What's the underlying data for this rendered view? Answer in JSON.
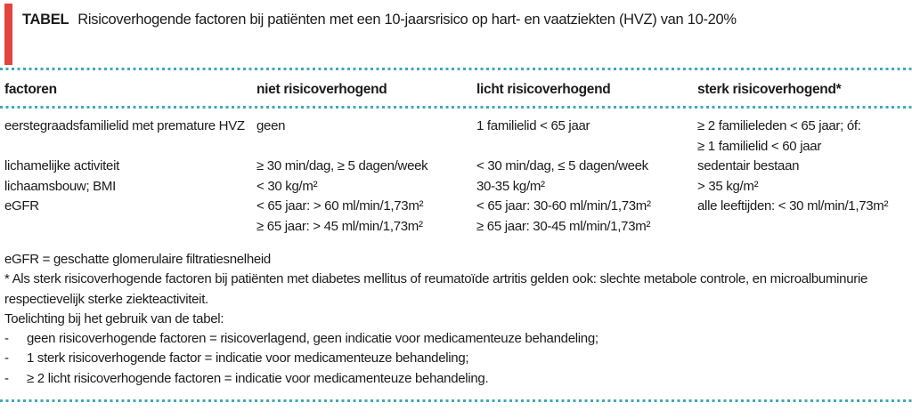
{
  "title": {
    "label": "TABEL",
    "text": "Risicoverhogende factoren bij patiënten met een 10-jaarsrisico op hart- en vaatziekten (HVZ) van 10-20%"
  },
  "colors": {
    "accent_red": "#e2453f",
    "rule_teal": "#3da9b9",
    "text": "#1b1b1b"
  },
  "table": {
    "headers": [
      "factoren",
      "niet risicoverhogend",
      "licht risicoverhogend",
      "sterk risicoverhogend*"
    ],
    "rows": [
      {
        "factor": [
          "eerstegraadsfamilielid met premature HVZ"
        ],
        "niet": [
          "geen"
        ],
        "licht": [
          "1 familielid < 65 jaar"
        ],
        "sterk": [
          "≥ 2 familieleden < 65 jaar; óf:",
          "≥ 1 familielid < 60 jaar"
        ]
      },
      {
        "factor": [
          "lichamelijke activiteit"
        ],
        "niet": [
          "≥ 30 min/dag, ≥ 5 dagen/week"
        ],
        "licht": [
          "< 30 min/dag, ≤ 5 dagen/week"
        ],
        "sterk": [
          "sedentair bestaan"
        ]
      },
      {
        "factor": [
          "lichaamsbouw; BMI"
        ],
        "niet": [
          "< 30 kg/m²"
        ],
        "licht": [
          "30-35 kg/m²"
        ],
        "sterk": [
          "> 35 kg/m²"
        ]
      },
      {
        "factor": [
          "eGFR"
        ],
        "niet": [
          "< 65 jaar: > 60 ml/min/1,73m²",
          "≥ 65 jaar: > 45 ml/min/1,73m²"
        ],
        "licht": [
          "< 65 jaar: 30-60 ml/min/1,73m²",
          "≥ 65 jaar: 30-45 ml/min/1,73m²"
        ],
        "sterk": [
          "alle leeftijden: < 30 ml/min/1,73m²"
        ]
      }
    ]
  },
  "notes": {
    "legend": "eGFR = geschatte glomerulaire filtratiesnelheid",
    "asterisk_line1": "* Als sterk risicoverhogende factoren bij patiënten met diabetes mellitus of reumatoïde artritis gelden ook: slechte metabole controle, en microalbuminurie",
    "asterisk_line2": "respectievelijk sterke ziekteactiviteit.",
    "toelichting_heading": "Toelichting bij het gebruik van de tabel:",
    "bullet_marker": "-",
    "bullets": [
      "geen risicoverhogende factoren = risicoverlagend, geen indicatie voor medicamenteuze behandeling;",
      "1 sterk risicoverhogende factor = indicatie voor medicamenteuze behandeling;",
      "≥ 2 licht risicoverhogende factoren = indicatie voor medicamenteuze behandeling."
    ]
  }
}
